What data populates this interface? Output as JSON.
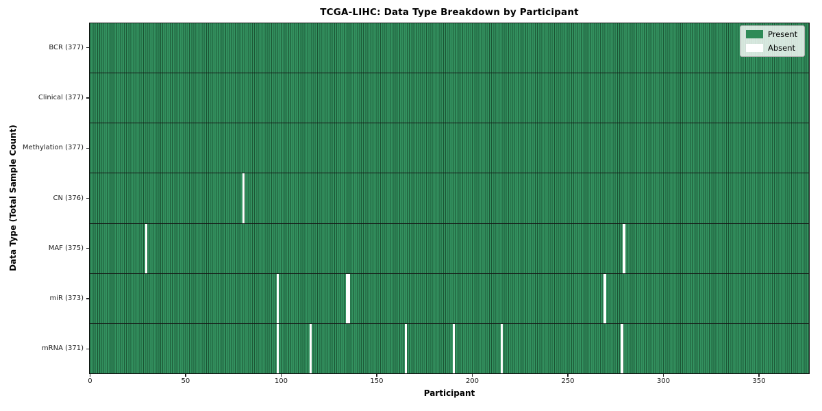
{
  "title": "TCGA-LIHC: Data Type Breakdown by Participant",
  "xlabel": "Participant",
  "ylabel": "Data Type (Total Sample Count)",
  "legend": {
    "present_label": "Present",
    "absent_label": "Absent"
  },
  "colors": {
    "present": "#2e8b57",
    "present_fill": "#33915f",
    "cell_edge": "#1b5534",
    "absent": "#ffffff",
    "row_divider": "#141414",
    "legend_bg": "rgba(255,255,255,0.8)",
    "legend_border": "#b3b3b3"
  },
  "chart_data": {
    "type": "heatmap",
    "title": "TCGA-LIHC: Data Type Breakdown by Participant",
    "xlabel": "Participant",
    "ylabel": "Data Type (Total Sample Count)",
    "n_participants": 377,
    "x_ticks": [
      0,
      50,
      100,
      150,
      200,
      250,
      300,
      350
    ],
    "x_range": [
      0,
      377
    ],
    "grid": false,
    "legend_position": "upper right",
    "legend_entries": [
      {
        "label": "Present",
        "color": "#2e8b57"
      },
      {
        "label": "Absent",
        "color": "#ffffff"
      }
    ],
    "rows": [
      {
        "key": "BCR",
        "label": "BCR (377)",
        "present_count": 377,
        "absent_participants": []
      },
      {
        "key": "Clinical",
        "label": "Clinical (377)",
        "present_count": 377,
        "absent_participants": []
      },
      {
        "key": "Methylation",
        "label": "Methylation (377)",
        "present_count": 377,
        "absent_participants": []
      },
      {
        "key": "CN",
        "label": "CN (376)",
        "present_count": 376,
        "absent_participants": [
          80
        ]
      },
      {
        "key": "MAF",
        "label": "MAF (375)",
        "present_count": 375,
        "absent_participants": [
          29,
          279
        ]
      },
      {
        "key": "miR",
        "label": "miR (373)",
        "present_count": 373,
        "absent_participants": [
          98,
          134,
          135,
          269
        ]
      },
      {
        "key": "mRNA",
        "label": "mRNA (371)",
        "present_count": 371,
        "absent_participants": [
          98,
          115,
          165,
          190,
          215,
          278
        ]
      }
    ]
  }
}
